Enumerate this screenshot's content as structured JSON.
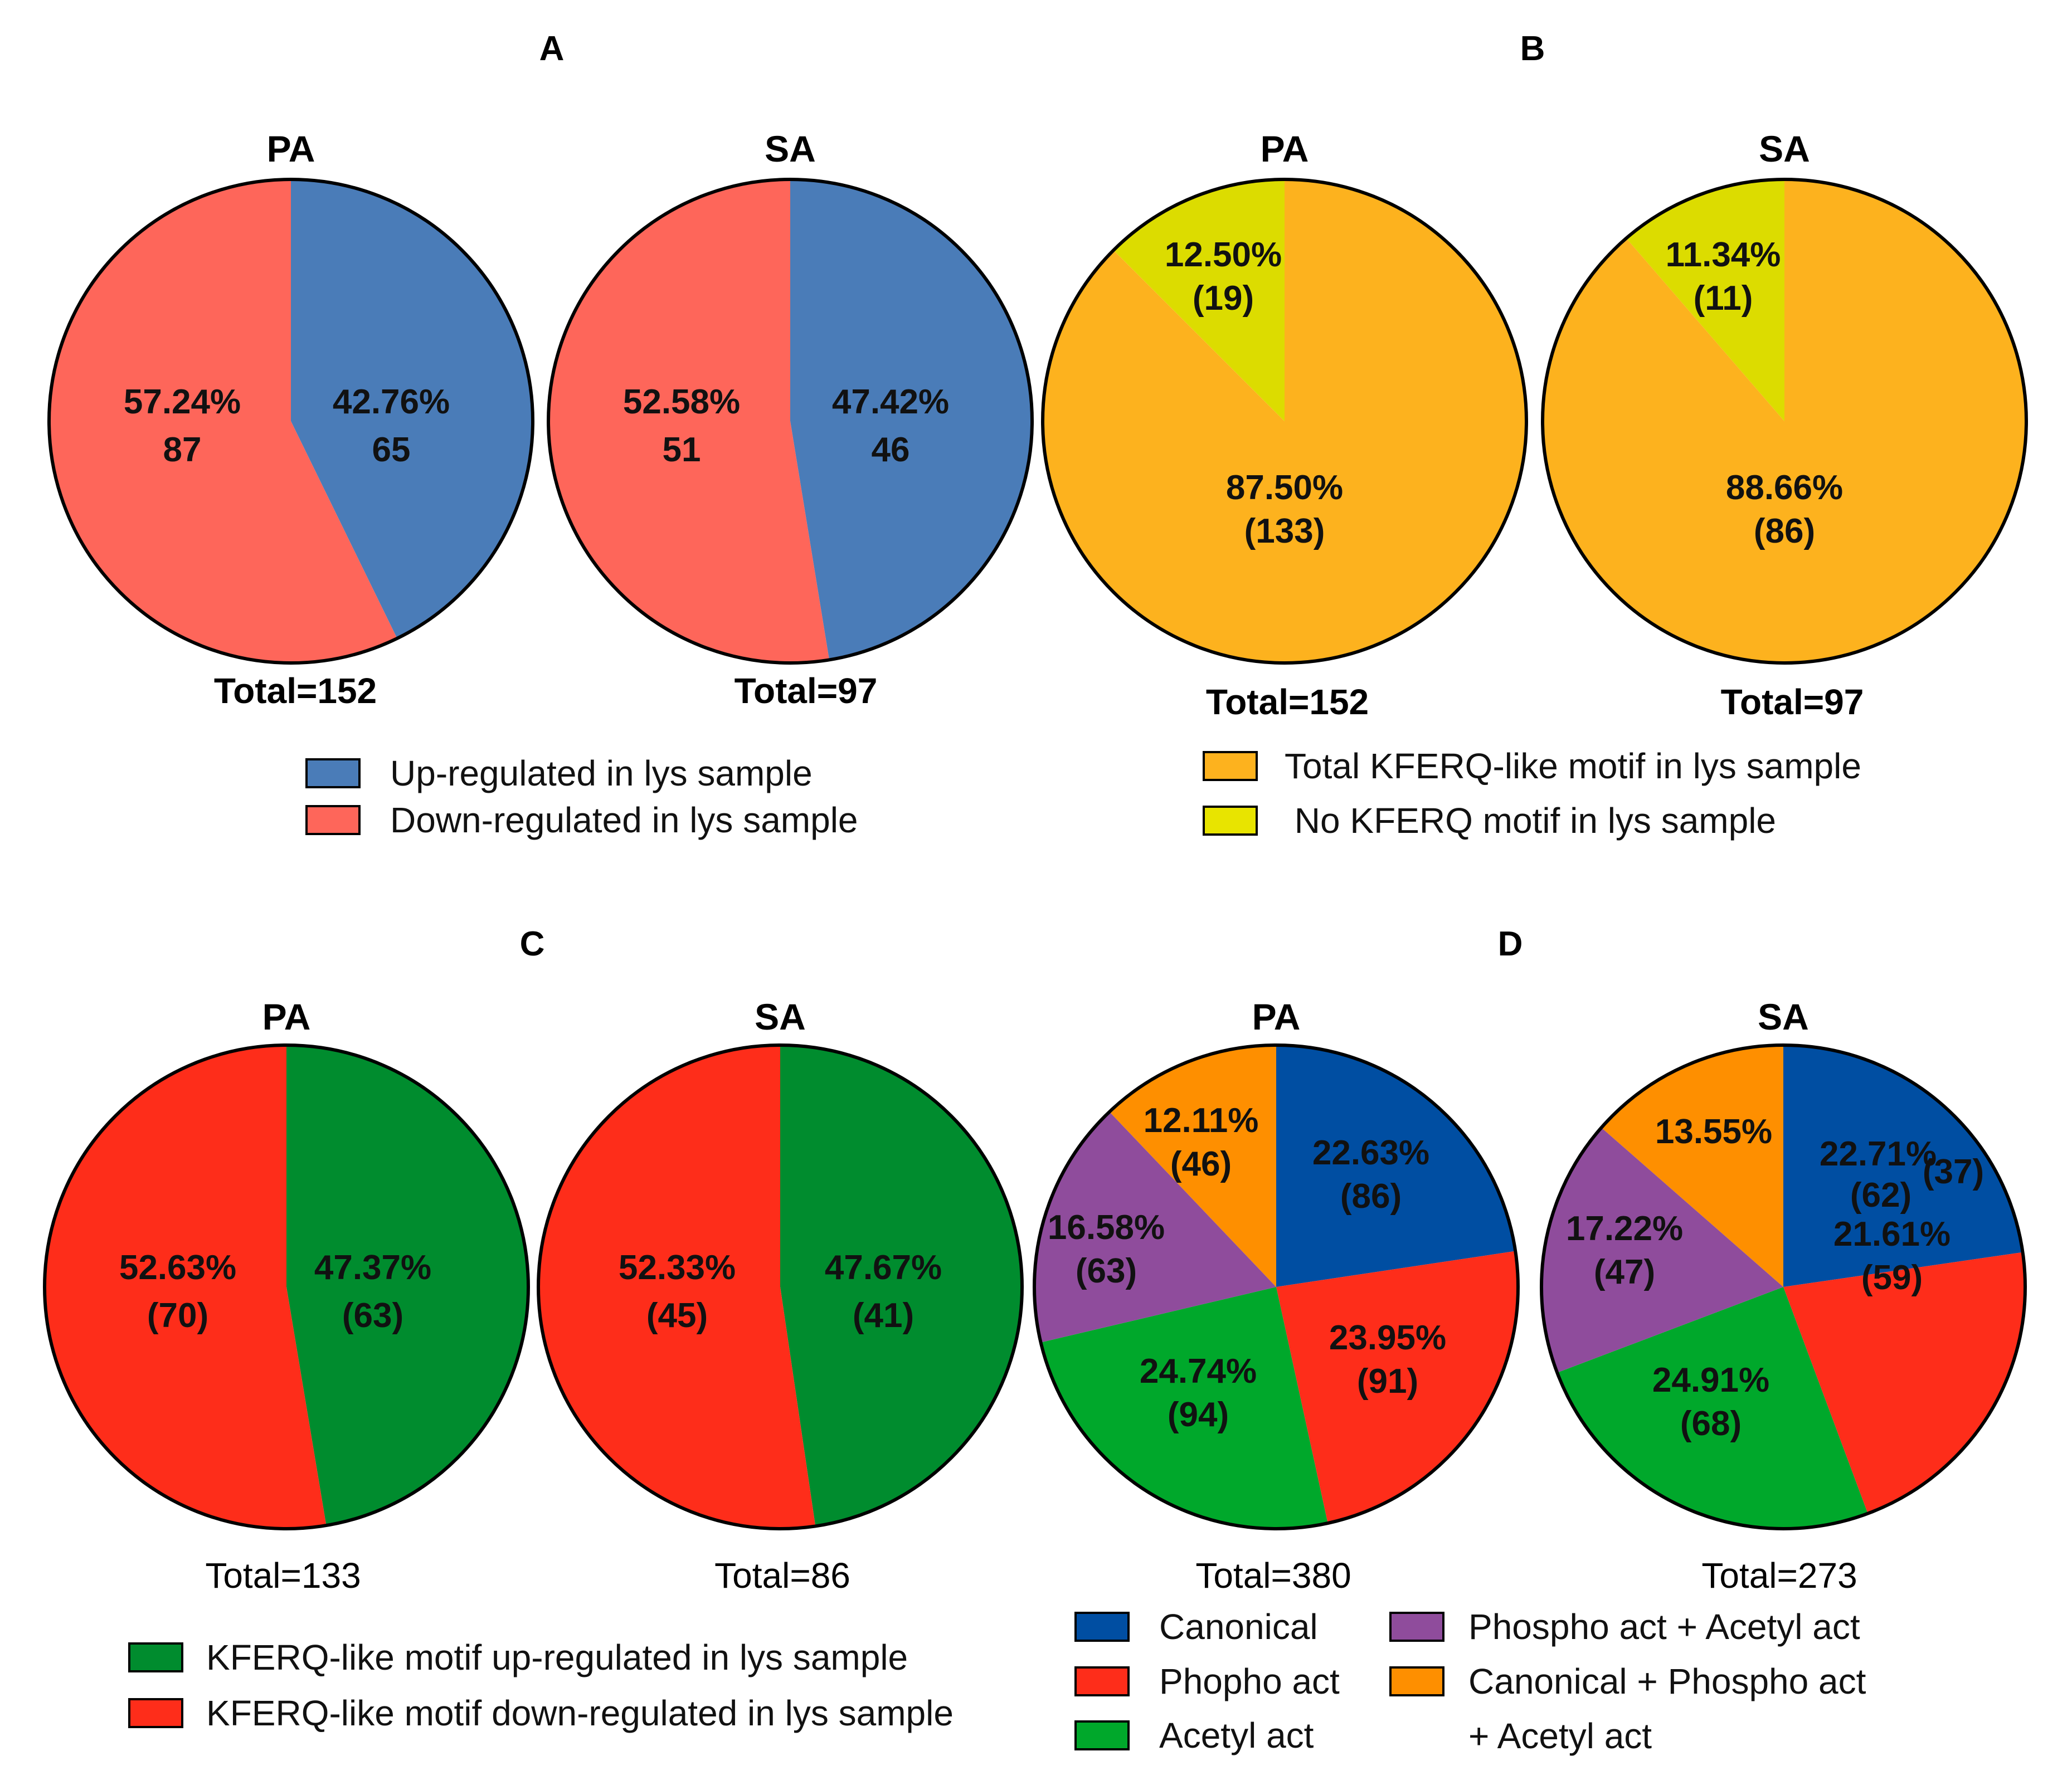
{
  "chart_data": [
    {
      "panel": "A",
      "type": "pie",
      "legend": [
        {
          "label": "Up-regulated in lys sample",
          "color": "#4a7cb8"
        },
        {
          "label": "Down-regulated in lys sample",
          "color": "#fe665a"
        }
      ],
      "pies": [
        {
          "title": "PA",
          "total": "Total=152",
          "total_weight": "bold",
          "slices": [
            {
              "legend": "Up-regulated in lys sample",
              "value": 65,
              "percent": 42.76,
              "color": "#4a7cb8",
              "labels": [
                "42.76%",
                "65"
              ]
            },
            {
              "legend": "Down-regulated in lys sample",
              "value": 87,
              "percent": 57.24,
              "color": "#fe665a",
              "labels": [
                "57.24%",
                "87"
              ]
            }
          ]
        },
        {
          "title": "SA",
          "total": "Total=97",
          "total_weight": "bold",
          "slices": [
            {
              "legend": "Up-regulated in lys sample",
              "value": 46,
              "percent": 47.42,
              "color": "#4a7cb8",
              "labels": [
                "47.42%",
                "46"
              ]
            },
            {
              "legend": "Down-regulated in lys sample",
              "value": 51,
              "percent": 52.58,
              "color": "#fe665a",
              "labels": [
                "52.58%",
                "51"
              ]
            }
          ]
        }
      ]
    },
    {
      "panel": "B",
      "type": "pie",
      "legend": [
        {
          "label": "Total KFERQ-like motif in lys sample",
          "color": "#fdb21e"
        },
        {
          "label": " No KFERQ motif in lys sample",
          "color": "#e8e400"
        }
      ],
      "pies": [
        {
          "title": "PA",
          "total": "Total=152",
          "total_weight": "bold",
          "slices": [
            {
              "legend": "Total KFERQ-like motif in lys sample",
              "value": 133,
              "percent": 87.5,
              "color": "#fdb21e",
              "labels": [
                "87.50%",
                "(133)"
              ]
            },
            {
              "legend": "No KFERQ motif in lys sample",
              "value": 19,
              "percent": 12.5,
              "color": "#dcdc00",
              "labels": [
                "12.50%",
                "(19)"
              ]
            }
          ]
        },
        {
          "title": "SA",
          "total": "Total=97",
          "total_weight": "bold",
          "slices": [
            {
              "legend": "Total KFERQ-like motif in lys sample",
              "value": 86,
              "percent": 88.66,
              "color": "#fdb21e",
              "labels": [
                "88.66%",
                "(86)"
              ]
            },
            {
              "legend": "No KFERQ motif in lys sample",
              "value": 11,
              "percent": 11.34,
              "color": "#dcdc00",
              "labels": [
                "11.34%",
                "(11)"
              ]
            }
          ]
        }
      ]
    },
    {
      "panel": "C",
      "type": "pie",
      "legend": [
        {
          "label": "KFERQ-like motif up-regulated in lys sample",
          "color": "#008c2e"
        },
        {
          "label": "KFERQ-like motif down-regulated in lys sample",
          "color": "#fe2d1a"
        }
      ],
      "pies": [
        {
          "title": "PA",
          "total": "Total=133",
          "total_weight": "normal",
          "slices": [
            {
              "legend": "KFERQ-like motif up-regulated in lys sample",
              "value": 63,
              "percent": 47.37,
              "color": "#008c2e",
              "labels": [
                "47.37%",
                "(63)"
              ]
            },
            {
              "legend": "KFERQ-like motif down-regulated in lys sample",
              "value": 70,
              "percent": 52.63,
              "color": "#fe2d1a",
              "labels": [
                "52.63%",
                "(70)"
              ]
            }
          ]
        },
        {
          "title": "SA",
          "total": "Total=86",
          "total_weight": "normal",
          "slices": [
            {
              "legend": "KFERQ-like motif up-regulated in lys sample",
              "value": 41,
              "percent": 47.67,
              "color": "#008c2e",
              "labels": [
                "47.67%",
                "(41)"
              ]
            },
            {
              "legend": "KFERQ-like motif down-regulated in lys sample",
              "value": 45,
              "percent": 52.33,
              "color": "#fe2d1a",
              "labels": [
                "52.33%",
                "(45)"
              ]
            }
          ]
        }
      ]
    },
    {
      "panel": "D",
      "type": "pie",
      "legend": [
        {
          "label": "Canonical",
          "color": "#004ea2"
        },
        {
          "label": "Phopho act",
          "color": "#fe2d1a"
        },
        {
          "label": "Acetyl act",
          "color": "#00a82b"
        },
        {
          "label": "Phospho act + Acetyl act",
          "color": "#8f4c9c"
        },
        {
          "label": "Canonical + Phospho act",
          "label_line2": "+ Acetyl act",
          "color": "#fe8f00"
        }
      ],
      "pies": [
        {
          "title": "PA",
          "total": "Total=380",
          "total_weight": "normal",
          "slices": [
            {
              "legend": "Canonical",
              "value": 86,
              "percent": 22.63,
              "color": "#004ea2",
              "labels": [
                "22.63%",
                "(86)"
              ]
            },
            {
              "legend": "Phopho act",
              "value": 91,
              "percent": 23.95,
              "color": "#fe2d1a",
              "labels": [
                "23.95%",
                "(91)"
              ]
            },
            {
              "legend": "Acetyl act",
              "value": 94,
              "percent": 24.74,
              "color": "#00a82b",
              "labels": [
                "24.74%",
                "(94)"
              ]
            },
            {
              "legend": "Phospho act + Acetyl act",
              "value": 63,
              "percent": 16.58,
              "color": "#8f4c9c",
              "labels": [
                "16.58%",
                "(63)"
              ]
            },
            {
              "legend": "Canonical + Phospho act + Acetyl act",
              "value": 46,
              "percent": 12.11,
              "color": "#fe8f00",
              "labels": [
                "12.11%",
                "(46)"
              ]
            }
          ]
        },
        {
          "title": "SA",
          "total": "Total=273",
          "total_weight": "normal",
          "slices": [
            {
              "legend": "Canonical",
              "value": 62,
              "percent": 22.71,
              "color": "#004ea2",
              "labels": [
                "22.71%",
                "(62)"
              ],
              "extra_label": "(37)"
            },
            {
              "legend": "Phopho act",
              "value": 59,
              "percent": 21.61,
              "color": "#fe2d1a",
              "labels": [
                "21.61%",
                "(59)"
              ]
            },
            {
              "legend": "Acetyl act",
              "value": 68,
              "percent": 24.91,
              "color": "#00a82b",
              "labels": [
                "24.91%",
                "(68)"
              ]
            },
            {
              "legend": "Phospho act + Acetyl act",
              "value": 47,
              "percent": 17.22,
              "color": "#8f4c9c",
              "labels": [
                "17.22%",
                "(47)"
              ]
            },
            {
              "legend": "Canonical + Phospho act + Acetyl act",
              "value": 37,
              "percent": 13.55,
              "color": "#fe8f00",
              "labels": [
                "13.55%"
              ]
            }
          ]
        }
      ]
    }
  ]
}
